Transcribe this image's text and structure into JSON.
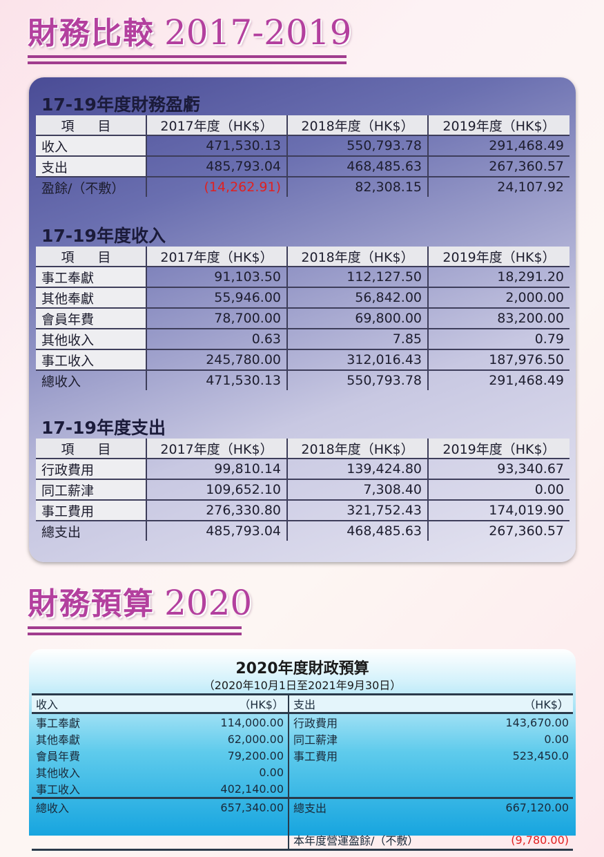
{
  "header1": {
    "cjk": "財務比較",
    "years": "2017-2019"
  },
  "header2": {
    "cjk": "財務預算",
    "years": "2020"
  },
  "col_headers": {
    "item": "項 目",
    "y2017": "2017年度（HK$）",
    "y2018": "2018年度（HK$）",
    "y2019": "2019年度（HK$）"
  },
  "surplus": {
    "title": "17-19年度財務盈虧",
    "rows": [
      {
        "label": "收入",
        "v2017": "471,530.13",
        "v2018": "550,793.78",
        "v2019": "291,468.49"
      },
      {
        "label": "支出",
        "v2017": "485,793.04",
        "v2018": "468,485.63",
        "v2019": "267,360.57"
      },
      {
        "label": "盈餘/（不敷）",
        "v2017": "(14,262.91)",
        "v2018": "82,308.15",
        "v2019": "24,107.92"
      }
    ]
  },
  "income": {
    "title": "17-19年度收入",
    "rows": [
      {
        "label": "事工奉獻",
        "v2017": "91,103.50",
        "v2018": "112,127.50",
        "v2019": "18,291.20"
      },
      {
        "label": "其他奉獻",
        "v2017": "55,946.00",
        "v2018": "56,842.00",
        "v2019": "2,000.00"
      },
      {
        "label": "會員年費",
        "v2017": "78,700.00",
        "v2018": "69,800.00",
        "v2019": "83,200.00"
      },
      {
        "label": "其他收入",
        "v2017": "0.63",
        "v2018": "7.85",
        "v2019": "0.79"
      },
      {
        "label": "事工收入",
        "v2017": "245,780.00",
        "v2018": "312,016.43",
        "v2019": "187,976.50"
      },
      {
        "label": "總收入",
        "v2017": "471,530.13",
        "v2018": "550,793.78",
        "v2019": "291,468.49"
      }
    ]
  },
  "expense": {
    "title": "17-19年度支出",
    "rows": [
      {
        "label": "行政費用",
        "v2017": "99,810.14",
        "v2018": "139,424.80",
        "v2019": "93,340.67"
      },
      {
        "label": "同工薪津",
        "v2017": "109,652.10",
        "v2018": "7,308.40",
        "v2019": "0.00"
      },
      {
        "label": "事工費用",
        "v2017": "276,330.80",
        "v2018": "321,752.43",
        "v2019": "174,019.90"
      },
      {
        "label": "總支出",
        "v2017": "485,793.04",
        "v2018": "468,485.63",
        "v2019": "267,360.57"
      }
    ]
  },
  "budget": {
    "title": "2020年度財政預算",
    "period": "（2020年10月1日至2021年9月30日）",
    "income_label": "收入",
    "expense_label": "支出",
    "unit": "（HK$）",
    "income_rows": [
      {
        "label": "事工奉獻",
        "value": "114,000.00"
      },
      {
        "label": "其他奉獻",
        "value": "62,000.00"
      },
      {
        "label": "會員年費",
        "value": "79,200.00"
      },
      {
        "label": "其他收入",
        "value": "0.00"
      },
      {
        "label": "事工收入",
        "value": "402,140.00"
      }
    ],
    "expense_rows": [
      {
        "label": "行政費用",
        "value": "143,670.00"
      },
      {
        "label": "同工薪津",
        "value": "0.00"
      },
      {
        "label": "事工費用",
        "value": "523,450.0"
      }
    ],
    "income_total_label": "總收入",
    "income_total": "657,340.00",
    "expense_total_label": "總支出",
    "expense_total": "667,120.00",
    "balance_label": "本年度營運盈餘/（不敷）",
    "balance_value": "(9,780.00)"
  }
}
